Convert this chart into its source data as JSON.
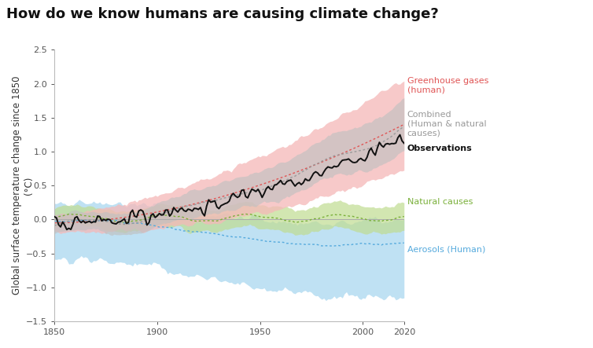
{
  "title": "How do we know humans are causing climate change?",
  "ylabel": "Global surface temperature change since 1850\n(°C)",
  "ylim": [
    -1.5,
    2.5
  ],
  "xlim": [
    1850,
    2020
  ],
  "xticks": [
    1850,
    1900,
    1950,
    2000,
    2020
  ],
  "yticks": [
    -1.5,
    -1.0,
    -0.5,
    0.0,
    0.5,
    1.0,
    1.5,
    2.0,
    2.5
  ],
  "colors": {
    "ghg_line": "#e05555",
    "ghg_fill": "#f5b8b8",
    "combined_line": "#999999",
    "combined_fill": "#c0c0c0",
    "natural_line": "#7ab03a",
    "natural_fill": "#c0dc90",
    "aerosol_line": "#55aadd",
    "aerosol_fill": "#aad8f0",
    "obs_line": "#111111",
    "zero_line": "#aaaaaa"
  },
  "title_fontsize": 13,
  "label_fontsize": 8.5
}
